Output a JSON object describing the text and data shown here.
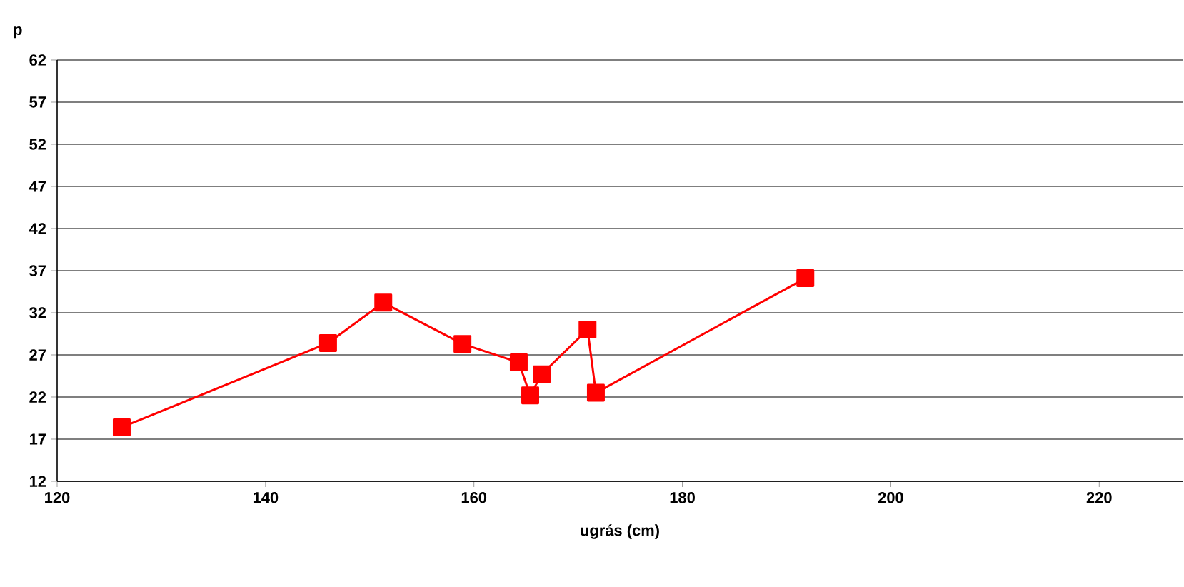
{
  "chart_data": {
    "type": "line",
    "xlabel": "ugrás (cm)",
    "ylabel": "p",
    "x": [
      126.2,
      146.0,
      151.3,
      158.9,
      164.3,
      165.4,
      166.5,
      170.9,
      171.7,
      191.8
    ],
    "values": [
      18.4,
      28.4,
      33.2,
      28.3,
      26.1,
      22.2,
      24.7,
      30.0,
      22.5,
      36.1
    ],
    "color": "#ff0000",
    "marker": "square",
    "line_style": "solid",
    "xlim": [
      120,
      228
    ],
    "ylim": [
      12,
      62
    ],
    "xticks": [
      120,
      140,
      160,
      180,
      200,
      220
    ],
    "yticks": [
      12,
      17,
      22,
      27,
      32,
      37,
      42,
      47,
      52,
      57,
      62
    ],
    "grid": "y"
  }
}
